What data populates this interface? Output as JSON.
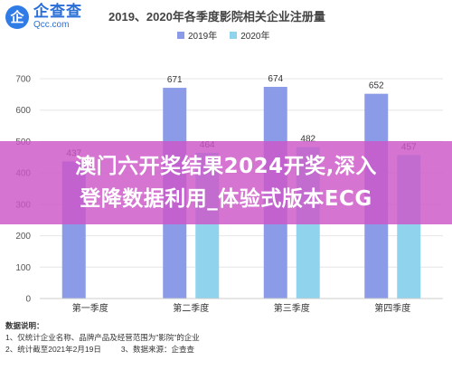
{
  "brand": {
    "logo_cn": "企查查",
    "logo_en": "Qcc.com",
    "logo_glyph": "企"
  },
  "chart_data": {
    "type": "bar",
    "title": "2019、2020年各季度影院相关企业注册量",
    "categories": [
      "第一季度",
      "第二季度",
      "第三季度",
      "第四季度"
    ],
    "series": [
      {
        "name": "2019年",
        "color": "#8b9be8",
        "values": [
          437,
          671,
          674,
          652
        ]
      },
      {
        "name": "2020年",
        "color": "#8fd4ec",
        "values": [
          null,
          464,
          482,
          457
        ]
      }
    ],
    "data_labels": [
      [
        "437",
        "671",
        "674",
        "652"
      ],
      [
        "",
        "464",
        "482",
        "457"
      ]
    ],
    "y_ticks": [
      "0",
      "100",
      "200",
      "300",
      "400",
      "500",
      "600",
      "700"
    ],
    "ylim": [
      0,
      700
    ],
    "xlabel": "",
    "ylabel": "",
    "grid": true,
    "legend_position": "top"
  },
  "notes": {
    "title": "数据说明：",
    "line1": "1、仅统计企业名称、品牌产品及经营范围为\"影院\"的企业",
    "line2a": "2、统计截至2021年2月19日",
    "line2b": "3、数据来源：企查查"
  },
  "overlay": {
    "line1": "澳门六开奖结果2024开奖,深入",
    "line2": "登降数据利用_体验式版本ECG"
  }
}
